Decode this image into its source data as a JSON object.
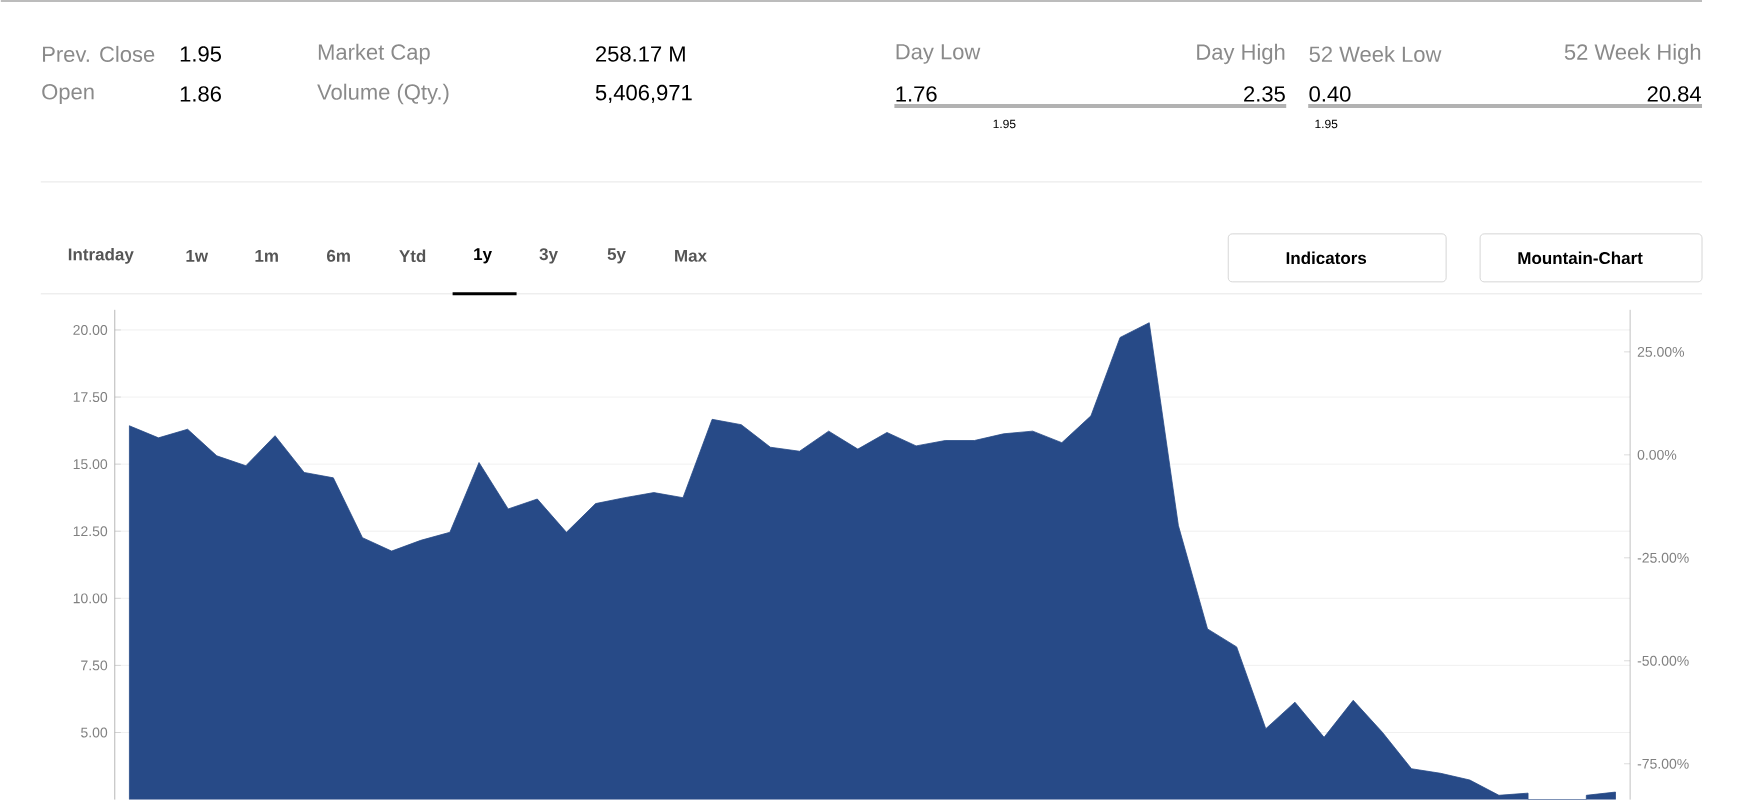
{
  "chart_data": {
    "type": "area",
    "categories": [
      null,
      null,
      null,
      null,
      null,
      null,
      null,
      null,
      null,
      null,
      null,
      null,
      null,
      null,
      null,
      null,
      null,
      null,
      null,
      null,
      null,
      null,
      null,
      null,
      null,
      null,
      null,
      null,
      null,
      null,
      null,
      null,
      null,
      null,
      null,
      null,
      null,
      null,
      null,
      null,
      null,
      null,
      null,
      null,
      null,
      null,
      null,
      null,
      null,
      null,
      null,
      null
    ],
    "values": [
      16.43,
      15.98,
      16.3,
      15.31,
      14.94,
      16.06,
      14.69,
      14.49,
      12.26,
      11.76,
      12.16,
      12.46,
      15.06,
      13.33,
      13.7,
      12.46,
      13.53,
      13.75,
      13.94,
      13.75,
      16.67,
      16.47,
      15.63,
      15.48,
      16.23,
      15.56,
      16.18,
      15.68,
      15.88,
      15.88,
      16.13,
      16.23,
      15.8,
      16.8,
      19.72,
      20.27,
      12.71,
      8.86,
      8.19,
      5.14,
      6.13,
      4.82,
      6.2,
      5.01,
      3.65,
      3.48,
      3.23,
      2.66,
      2.74,
      null,
      2.66,
      2.78
    ],
    "color": "#274a87",
    "ylim": [
      2.5,
      20.75
    ],
    "yticks": [
      {
        "value": 5,
        "label": "5.00"
      },
      {
        "value": 7.5,
        "label": "7.50"
      },
      {
        "value": 10,
        "label": "10.00"
      },
      {
        "value": 12.5,
        "label": "12.50"
      },
      {
        "value": 15,
        "label": "15.00"
      },
      {
        "value": 17.5,
        "label": "17.50"
      },
      {
        "value": 20,
        "label": "20.00"
      }
    ],
    "y2lim": [
      -83.7,
      35.2
    ],
    "y2ticks": [
      {
        "value": -75,
        "label": "-75.00%"
      },
      {
        "value": -50,
        "label": "-50.00%"
      },
      {
        "value": -25,
        "label": "-25.00%"
      },
      {
        "value": 0,
        "label": "0.00%"
      },
      {
        "value": 25,
        "label": "25.00%"
      }
    ],
    "grid": "y",
    "annotations": [
      "Prev. Close",
      "1.95",
      "Open",
      "1.86",
      "Market Cap",
      "258.17 M",
      "Volume (Qty.)",
      "5,406,971",
      "Day Low",
      "Day High",
      "1.76",
      "2.35",
      "1.95",
      "52 Week Low",
      "52 Week High",
      "0.40",
      "20.84",
      "1.95",
      "Intraday",
      "1w",
      "1m",
      "6m",
      "Ytd",
      "1y",
      "3y",
      "5y",
      "Max",
      "Indicators",
      "Mountain-Chart"
    ]
  }
}
